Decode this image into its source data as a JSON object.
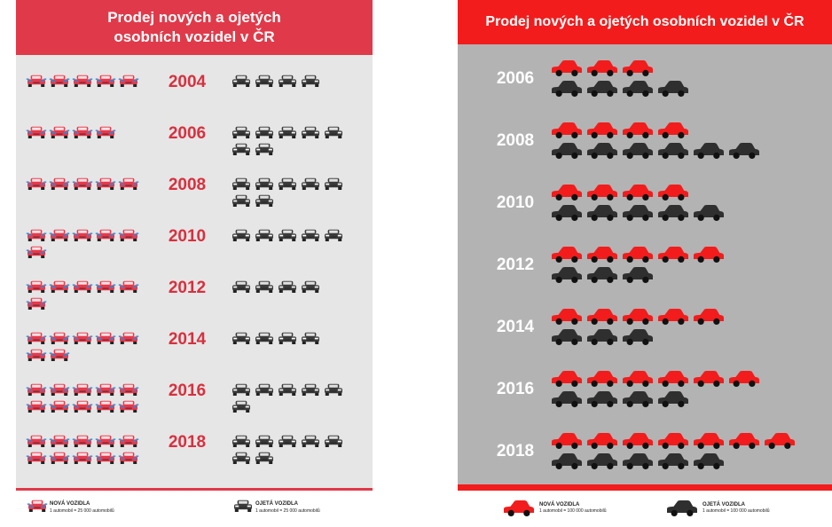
{
  "colors": {
    "left_header": "#e03a4a",
    "left_bg": "#e6e6e6",
    "new_car_left": "#e8394a",
    "new_car_accent": "#1d8fe3",
    "used_car_left": "#3a3a3a",
    "right_header": "#f21c1c",
    "right_bg": "#b3b3b3",
    "new_car_right": "#f21c1c",
    "used_car_right": "#2f2f2f",
    "year_left": "#d8303e"
  },
  "left_title_lines": [
    "Prodej nových a ojetých",
    "osobních vozidel v ČR"
  ],
  "right_title": "Prodej nových a ojetých osobních vozidel v ČR",
  "left_legend": {
    "new_title": "NOVÁ VOZIDLA",
    "new_sub": "1 automobil = 25 000 automobilů",
    "used_title": "OJETÁ VOZIDLA",
    "used_sub": "1 automobil = 25 000 automobilů"
  },
  "right_legend": {
    "new_title": "NOVÁ VOZIDLA",
    "new_sub": "1 automobil = 100 000 automobilů",
    "used_title": "OJETÁ VOZIDLA",
    "used_sub": "1 automobil = 100 000 automobilů"
  },
  "chart_data": [
    {
      "type": "pictogram",
      "title": "Prodej nových a ojetých osobních vozidel v ČR",
      "unit": "1 automobil = 25 000 automobilů",
      "categories": [
        "2004",
        "2006",
        "2008",
        "2010",
        "2012",
        "2014",
        "2016",
        "2018"
      ],
      "series": [
        {
          "name": "NOVÁ VOZIDLA",
          "values": [
            5,
            4,
            5,
            6,
            6,
            7,
            10,
            10
          ]
        },
        {
          "name": "OJETÁ VOZIDLA",
          "values": [
            4,
            7,
            7,
            5,
            4,
            4,
            6,
            7
          ]
        }
      ]
    },
    {
      "type": "pictogram",
      "title": "Prodej nových a ojetých osobních vozidel v ČR",
      "unit": "1 automobil = 100 000 automobilů",
      "categories": [
        "2006",
        "2008",
        "2010",
        "2012",
        "2014",
        "2016",
        "2018"
      ],
      "series": [
        {
          "name": "NOVÁ VOZIDLA",
          "values": [
            3,
            4,
            4,
            5,
            5,
            6,
            7
          ]
        },
        {
          "name": "OJETÁ VOZIDLA",
          "values": [
            4,
            6,
            5,
            3,
            3,
            4,
            5
          ]
        }
      ]
    }
  ]
}
